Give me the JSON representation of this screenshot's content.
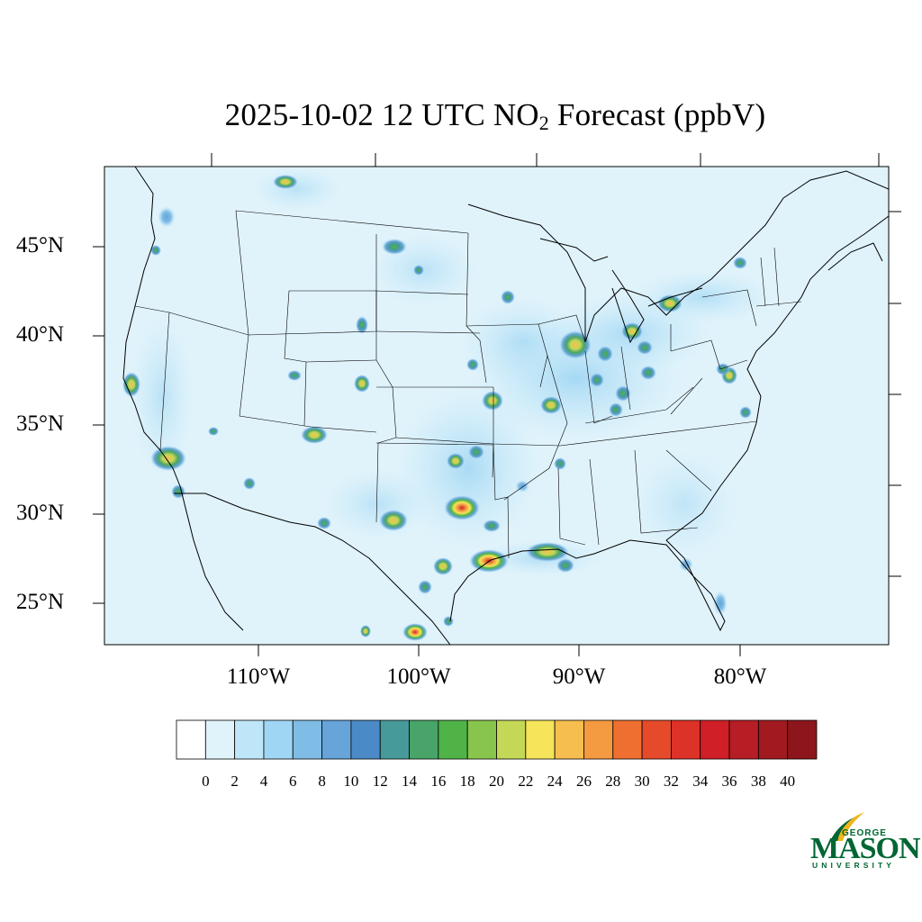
{
  "title": {
    "prefix": "2025-10-02 12 UTC NO",
    "subscript": "2",
    "suffix": " Forecast (ppbV)"
  },
  "map": {
    "lat_labels": [
      "45°N",
      "40°N",
      "35°N",
      "30°N",
      "25°N"
    ],
    "lon_labels": [
      "110°W",
      "100°W",
      "90°W",
      "80°W"
    ],
    "background_color": "#e0f3fb"
  },
  "colorbar": {
    "labels": [
      "0",
      "2",
      "4",
      "6",
      "8",
      "10",
      "12",
      "14",
      "16",
      "18",
      "20",
      "22",
      "24",
      "26",
      "28",
      "30",
      "32",
      "34",
      "36",
      "38",
      "40"
    ],
    "colors": [
      "#ffffff",
      "#e0f3fb",
      "#bfe6f8",
      "#9fd6f3",
      "#80bde6",
      "#66a4d9",
      "#4a8ac6",
      "#469a9a",
      "#48a468",
      "#4fb348",
      "#88c54c",
      "#c4d757",
      "#f6e45a",
      "#f6be4e",
      "#f49a40",
      "#ee6f30",
      "#e54a2b",
      "#dd3227",
      "#d01f27",
      "#b71d24",
      "#a01a1f",
      "#8c161b"
    ]
  },
  "logo": {
    "line1": "GEORGE",
    "line2": "MASON",
    "line3": "UNIVERSITY",
    "color": "#006633",
    "accent": "#f2b51b"
  }
}
